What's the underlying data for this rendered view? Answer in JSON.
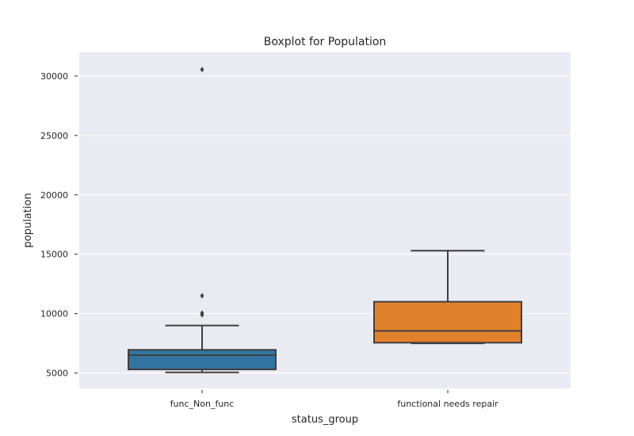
{
  "chart_data": {
    "type": "boxplot",
    "title": "Boxplot for Population",
    "xlabel": "status_group",
    "ylabel": "population",
    "categories": [
      "func_Non_func",
      "functional needs repair"
    ],
    "ylim": [
      3700,
      32000
    ],
    "yticks": [
      5000,
      10000,
      15000,
      20000,
      25000,
      30000
    ],
    "grid": true,
    "background": "#eaeaf2",
    "grid_color": "#ffffff",
    "line_color": "#3f3f3f",
    "boxes": [
      {
        "category": "func_Non_func",
        "color": "#3274a1",
        "whisker_low": 5050,
        "q1": 5300,
        "median": 6500,
        "q3": 6950,
        "whisker_high": 9000,
        "outliers": [
          9900,
          10050,
          11500,
          30550
        ]
      },
      {
        "category": "functional needs repair",
        "color": "#e1812c",
        "whisker_low": 7500,
        "q1": 7550,
        "median": 8550,
        "q3": 11000,
        "whisker_high": 15300,
        "outliers": []
      }
    ]
  }
}
